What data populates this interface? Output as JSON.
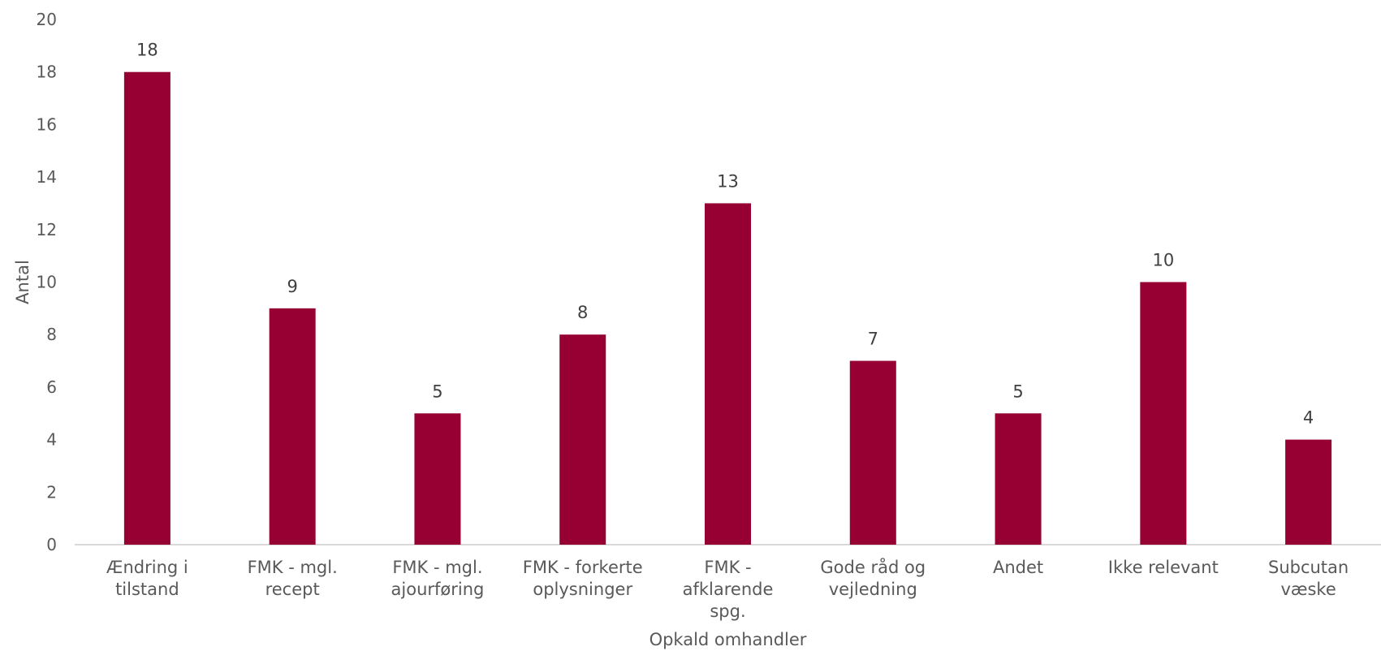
{
  "chart_data": {
    "type": "bar",
    "categories": [
      [
        "Ændring i",
        "tilstand"
      ],
      [
        "FMK - mgl.",
        "recept"
      ],
      [
        "FMK - mgl.",
        "ajourføring"
      ],
      [
        "FMK - forkerte",
        "oplysninger"
      ],
      [
        "FMK -",
        "afklarende",
        "spg."
      ],
      [
        "Gode råd og",
        "vejledning"
      ],
      [
        "Andet"
      ],
      [
        "Ikke relevant"
      ],
      [
        "Subcutan",
        "væske"
      ]
    ],
    "values": [
      18,
      9,
      5,
      8,
      13,
      7,
      5,
      10,
      4
    ],
    "xlabel": "Opkald omhandler",
    "ylabel": "Antal",
    "ylim": [
      0,
      20
    ],
    "yticks": [
      0,
      2,
      4,
      6,
      8,
      10,
      12,
      14,
      16,
      18,
      20
    ],
    "grid": false,
    "data_labels": true,
    "bar_color": "#960032",
    "axis_color": "#d9d9d9"
  }
}
